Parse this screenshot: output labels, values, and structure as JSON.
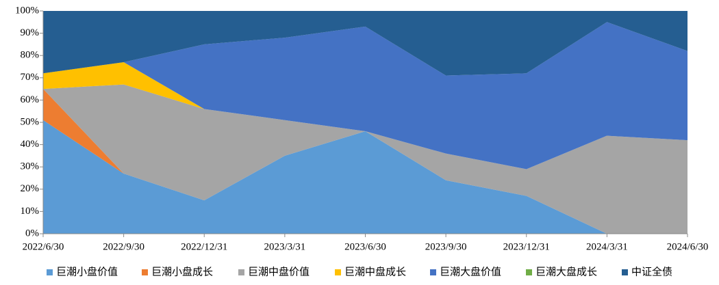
{
  "chart_data": {
    "type": "stacked_area",
    "categories": [
      "2022/6/30",
      "2022/9/30",
      "2022/12/31",
      "2023/3/31",
      "2023/6/30",
      "2023/9/30",
      "2023/12/31",
      "2024/3/31",
      "2024/6/30"
    ],
    "series": [
      {
        "name": "巨潮小盘价值",
        "color": "#5b9bd5",
        "values": [
          51,
          27,
          15,
          35,
          46,
          24,
          17,
          0,
          0
        ]
      },
      {
        "name": "巨潮小盘成长",
        "color": "#ed7d31",
        "values": [
          14,
          0,
          0,
          0,
          0,
          0,
          0,
          0,
          0
        ]
      },
      {
        "name": "巨潮中盘价值",
        "color": "#a5a5a5",
        "values": [
          0,
          40,
          41,
          16,
          0,
          12,
          12,
          44,
          42
        ]
      },
      {
        "name": "巨潮中盘成长",
        "color": "#ffc000",
        "values": [
          7,
          10,
          0,
          0,
          0,
          0,
          0,
          0,
          0
        ]
      },
      {
        "name": "巨潮大盘价值",
        "color": "#4472c4",
        "values": [
          0,
          0,
          29,
          37,
          47,
          35,
          43,
          51,
          40
        ]
      },
      {
        "name": "巨潮大盘成长",
        "color": "#70ad47",
        "values": [
          0,
          0,
          0,
          0,
          0,
          0,
          0,
          0,
          0
        ]
      },
      {
        "name": "中证全债",
        "color": "#255e91",
        "values": [
          28,
          23,
          15,
          12,
          7,
          29,
          28,
          5,
          18
        ]
      }
    ],
    "ylim": [
      0,
      100
    ],
    "yticks": [
      {
        "value": 0,
        "label": "0%"
      },
      {
        "value": 10,
        "label": "10%"
      },
      {
        "value": 20,
        "label": "20%"
      },
      {
        "value": 30,
        "label": "30%"
      },
      {
        "value": 40,
        "label": "40%"
      },
      {
        "value": 50,
        "label": "50%"
      },
      {
        "value": 60,
        "label": "60%"
      },
      {
        "value": 70,
        "label": "70%"
      },
      {
        "value": 80,
        "label": "80%"
      },
      {
        "value": 90,
        "label": "90%"
      },
      {
        "value": 100,
        "label": "100%"
      }
    ],
    "legend": "bottom"
  }
}
